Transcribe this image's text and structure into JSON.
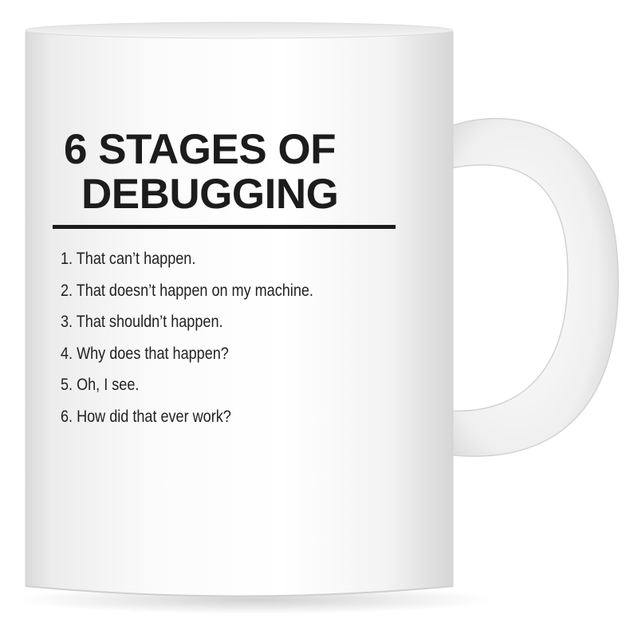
{
  "mug": {
    "title_line_1": "6 STAGES OF",
    "title_line_2": "DEBUGGING",
    "stages": [
      "1. That can’t happen.",
      "2. That doesn’t happen on my machine.",
      "3. That shouldn’t happen.",
      "4. Why does that happen?",
      "5. Oh, I see.",
      "6. How did that ever work?"
    ]
  },
  "colors": {
    "mug_body": "#f4f4f4",
    "print_text": "#1c1c1c",
    "background": "#ffffff"
  }
}
